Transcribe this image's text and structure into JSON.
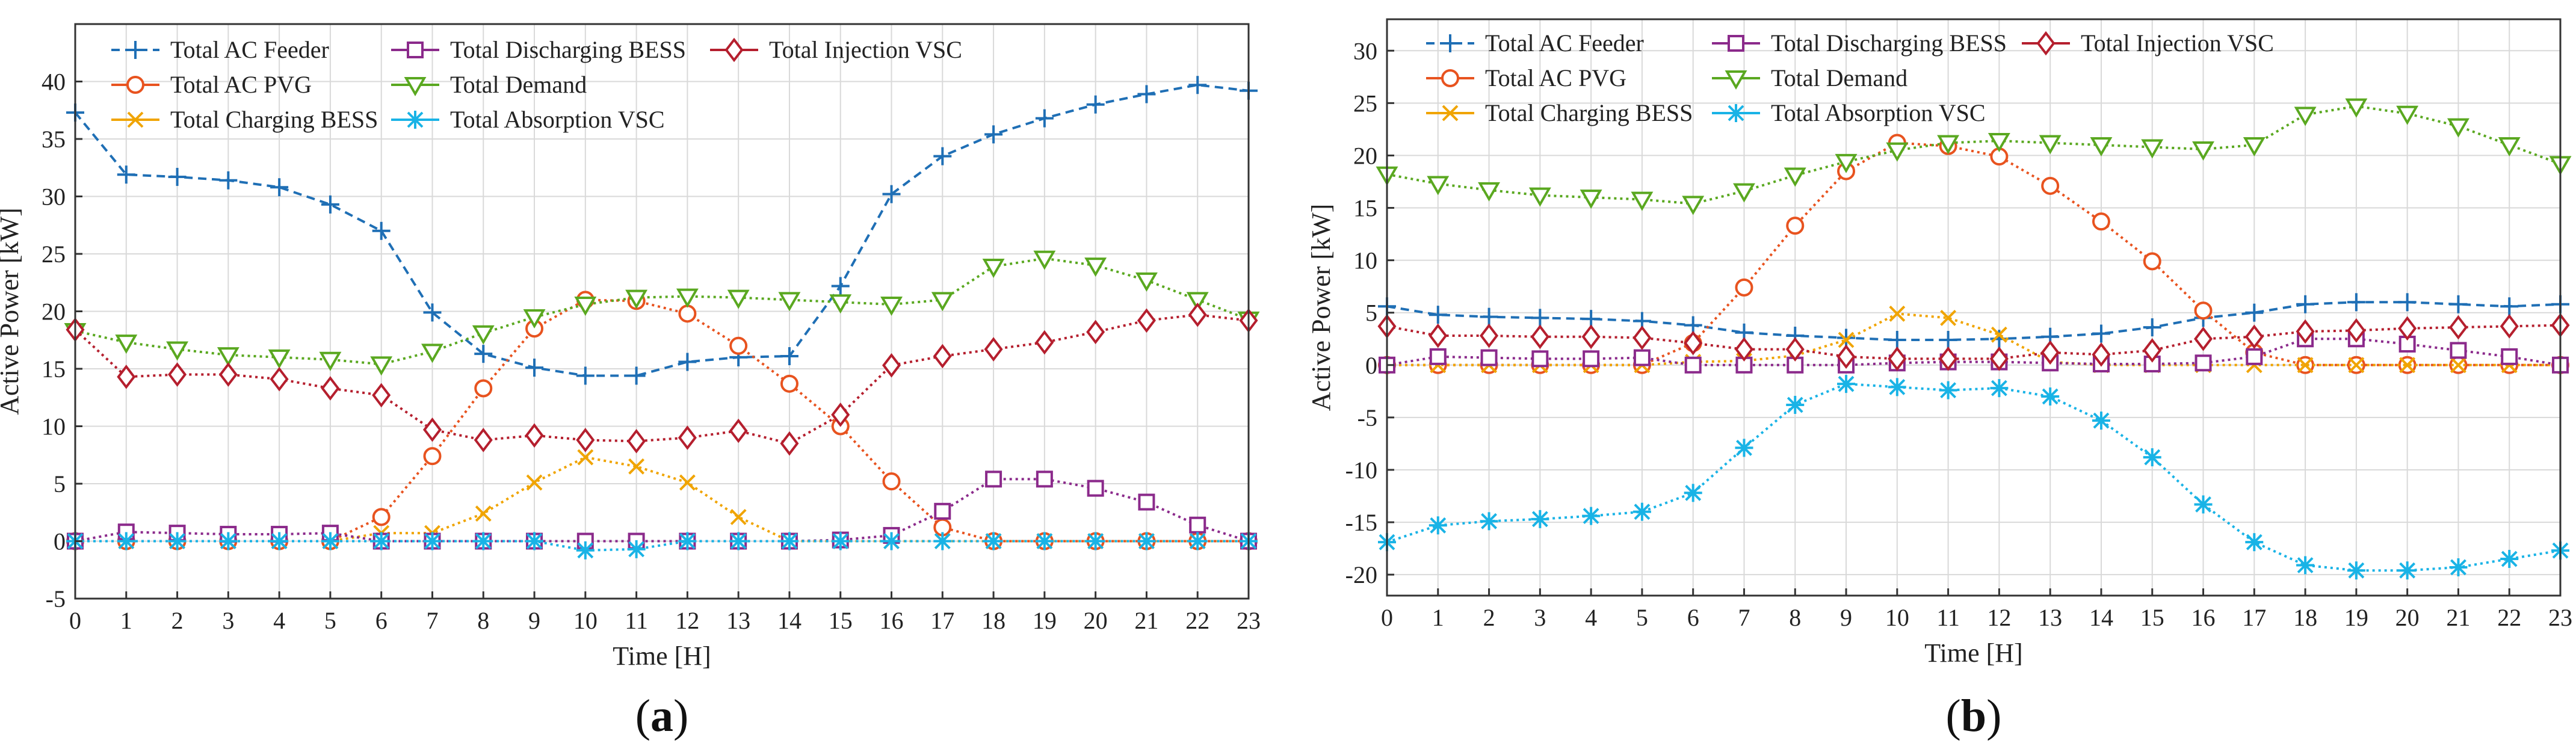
{
  "chart_data": [
    {
      "type": "line",
      "panel_label": "a",
      "xlabel": "Time [H]",
      "ylabel": "Active Power [kW]",
      "xlim": [
        0,
        23
      ],
      "ylim": [
        -5,
        45
      ],
      "xticks": [
        0,
        1,
        2,
        3,
        4,
        5,
        6,
        7,
        8,
        9,
        10,
        11,
        12,
        13,
        14,
        15,
        16,
        17,
        18,
        19,
        20,
        21,
        22,
        23
      ],
      "yticks": [
        -5,
        0,
        5,
        10,
        15,
        20,
        25,
        30,
        35,
        40
      ],
      "grid": true,
      "legend_position": "top-left",
      "x": [
        0,
        1,
        2,
        3,
        4,
        5,
        6,
        7,
        8,
        9,
        10,
        11,
        12,
        13,
        14,
        15,
        16,
        17,
        18,
        19,
        20,
        21,
        22,
        23
      ],
      "series": [
        {
          "name": "Total AC Feeder",
          "color": "#1f6fb5",
          "marker": "plus",
          "dash": true,
          "values": [
            37.3,
            31.9,
            31.7,
            31.4,
            30.8,
            29.3,
            27.0,
            19.9,
            16.3,
            15.1,
            14.4,
            14.4,
            15.6,
            16.0,
            16.1,
            22.2,
            30.2,
            33.5,
            35.4,
            36.8,
            38.0,
            38.9,
            39.7,
            39.2
          ]
        },
        {
          "name": "Total AC PVG",
          "color": "#e8531f",
          "marker": "circle",
          "dash": false,
          "values": [
            0,
            0,
            0,
            0,
            0,
            0,
            2.1,
            7.4,
            13.3,
            18.5,
            21.0,
            20.9,
            19.8,
            17.0,
            13.7,
            10.0,
            5.2,
            1.2,
            0,
            0,
            0,
            0,
            0,
            0
          ]
        },
        {
          "name": "Total Charging BESS",
          "color": "#f0a400",
          "marker": "x",
          "dash": false,
          "values": [
            0,
            0,
            0,
            0,
            0,
            0,
            0.7,
            0.7,
            2.4,
            5.1,
            7.3,
            6.5,
            5.1,
            2.1,
            0,
            0,
            0,
            0,
            0,
            0,
            0,
            0,
            0,
            0
          ]
        },
        {
          "name": "Total Discharging BESS",
          "color": "#8b2a8b",
          "marker": "square",
          "dash": false,
          "values": [
            0,
            0.8,
            0.7,
            0.6,
            0.6,
            0.7,
            0,
            0,
            0,
            0,
            0,
            0,
            0,
            0,
            0,
            0.1,
            0.5,
            2.6,
            5.4,
            5.4,
            4.6,
            3.4,
            1.4,
            0
          ]
        },
        {
          "name": "Total Demand",
          "color": "#5aa820",
          "marker": "triangle",
          "dash": false,
          "values": [
            18.3,
            17.3,
            16.7,
            16.2,
            16.0,
            15.8,
            15.4,
            16.5,
            18.1,
            19.5,
            20.6,
            21.2,
            21.3,
            21.2,
            21.0,
            20.8,
            20.6,
            21.0,
            23.9,
            24.6,
            24.0,
            22.7,
            21.0,
            19.3
          ]
        },
        {
          "name": "Total Absorption VSC",
          "color": "#19b3e6",
          "marker": "asterisk",
          "dash": false,
          "values": [
            0,
            0,
            0,
            0,
            0,
            0,
            0,
            0,
            0,
            0,
            -0.8,
            -0.7,
            0,
            0,
            0,
            0,
            0,
            0,
            0,
            0,
            0,
            0,
            0,
            0
          ]
        },
        {
          "name": "Total Injection VSC",
          "color": "#b51f2e",
          "marker": "diamond",
          "dash": false,
          "values": [
            18.4,
            14.3,
            14.5,
            14.5,
            14.1,
            13.3,
            12.7,
            9.7,
            8.8,
            9.2,
            8.8,
            8.7,
            9.0,
            9.6,
            8.5,
            11.0,
            15.3,
            16.1,
            16.7,
            17.3,
            18.2,
            19.2,
            19.7,
            19.2
          ]
        }
      ]
    },
    {
      "type": "line",
      "panel_label": "b",
      "xlabel": "Time [H]",
      "ylabel": "Active Power [kW]",
      "xlim": [
        0,
        23
      ],
      "ylim": [
        -22,
        33
      ],
      "xticks": [
        0,
        1,
        2,
        3,
        4,
        5,
        6,
        7,
        8,
        9,
        10,
        11,
        12,
        13,
        14,
        15,
        16,
        17,
        18,
        19,
        20,
        21,
        22,
        23
      ],
      "yticks": [
        -20,
        -15,
        -10,
        -5,
        0,
        5,
        10,
        15,
        20,
        25,
        30
      ],
      "grid": true,
      "legend_position": "top-left",
      "x": [
        0,
        1,
        2,
        3,
        4,
        5,
        6,
        7,
        8,
        9,
        10,
        11,
        12,
        13,
        14,
        15,
        16,
        17,
        18,
        19,
        20,
        21,
        22,
        23
      ],
      "series": [
        {
          "name": "Total AC Feeder",
          "color": "#1f6fb5",
          "marker": "plus",
          "dash": true,
          "values": [
            5.6,
            4.8,
            4.6,
            4.5,
            4.4,
            4.2,
            3.8,
            3.1,
            2.8,
            2.6,
            2.4,
            2.4,
            2.5,
            2.7,
            3.0,
            3.6,
            4.5,
            5.0,
            5.8,
            6.0,
            6.0,
            5.8,
            5.6,
            5.8
          ]
        },
        {
          "name": "Total AC PVG",
          "color": "#e8531f",
          "marker": "circle",
          "dash": false,
          "values": [
            0,
            0,
            0,
            0,
            0,
            0,
            2.1,
            7.4,
            13.3,
            18.5,
            21.2,
            20.9,
            19.9,
            17.1,
            13.7,
            9.9,
            5.2,
            1.2,
            0,
            0,
            0,
            0,
            0,
            0
          ]
        },
        {
          "name": "Total Charging BESS",
          "color": "#f0a400",
          "marker": "x",
          "dash": false,
          "values": [
            0,
            0,
            0,
            0,
            0,
            0,
            0.3,
            0.4,
            0.9,
            2.4,
            4.9,
            4.5,
            2.9,
            0.3,
            0,
            0,
            0,
            0,
            0,
            0,
            0,
            0,
            0,
            0
          ]
        },
        {
          "name": "Total Discharging BESS",
          "color": "#8b2a8b",
          "marker": "square",
          "dash": false,
          "values": [
            0,
            0.8,
            0.7,
            0.6,
            0.6,
            0.7,
            0,
            0,
            0,
            0,
            0.2,
            0.3,
            0.3,
            0.2,
            0.1,
            0.1,
            0.2,
            0.8,
            2.5,
            2.5,
            2.0,
            1.4,
            0.8,
            0
          ]
        },
        {
          "name": "Total Demand",
          "color": "#5aa820",
          "marker": "triangle",
          "dash": false,
          "values": [
            18.2,
            17.3,
            16.7,
            16.2,
            16.0,
            15.8,
            15.4,
            16.6,
            18.1,
            19.4,
            20.5,
            21.2,
            21.4,
            21.2,
            21.0,
            20.8,
            20.6,
            21.0,
            23.9,
            24.7,
            24.0,
            22.8,
            21.0,
            19.2
          ]
        },
        {
          "name": "Total Absorption VSC",
          "color": "#19b3e6",
          "marker": "asterisk",
          "dash": false,
          "values": [
            -16.9,
            -15.3,
            -14.9,
            -14.7,
            -14.4,
            -14.0,
            -12.2,
            -7.9,
            -3.8,
            -1.8,
            -2.1,
            -2.4,
            -2.2,
            -3.0,
            -5.3,
            -8.8,
            -13.3,
            -16.9,
            -19.1,
            -19.6,
            -19.6,
            -19.3,
            -18.5,
            -17.7
          ]
        },
        {
          "name": "Total Injection VSC",
          "color": "#b51f2e",
          "marker": "diamond",
          "dash": false,
          "values": [
            3.7,
            2.8,
            2.8,
            2.7,
            2.7,
            2.6,
            2.1,
            1.5,
            1.5,
            0.8,
            0.6,
            0.6,
            0.6,
            1.2,
            1.0,
            1.4,
            2.5,
            2.7,
            3.2,
            3.3,
            3.5,
            3.6,
            3.7,
            3.8
          ]
        }
      ]
    }
  ]
}
